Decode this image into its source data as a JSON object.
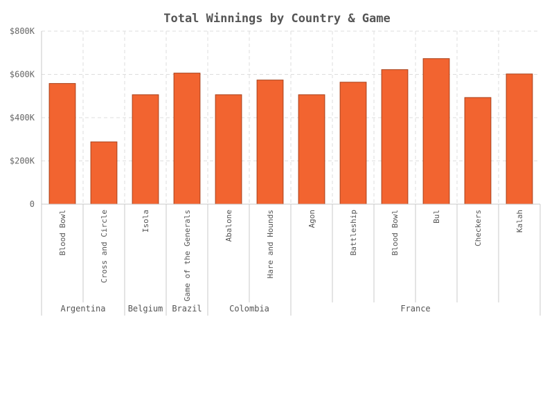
{
  "chart_data": {
    "type": "bar",
    "title": "Total Winnings by Country & Game",
    "xlabel": "",
    "ylabel": "",
    "ylim": [
      0,
      800000
    ],
    "yticks": [
      {
        "value": 0,
        "label": "0"
      },
      {
        "value": 200000,
        "label": "$200K"
      },
      {
        "value": 400000,
        "label": "$400K"
      },
      {
        "value": 600000,
        "label": "$600K"
      },
      {
        "value": 800000,
        "label": "$800K"
      }
    ],
    "grid": true,
    "legend": "none",
    "bar_color": "#f26430",
    "groups": [
      {
        "name": "Argentina",
        "categories": [
          "Blood Bowl",
          "Cross and Circle"
        ],
        "values": [
          558000,
          288000
        ]
      },
      {
        "name": "Belgium",
        "categories": [
          "Isola"
        ],
        "values": [
          506000
        ]
      },
      {
        "name": "Brazil",
        "categories": [
          "Game of the Generals"
        ],
        "values": [
          606000
        ]
      },
      {
        "name": "Colombia",
        "categories": [
          "Abalone",
          "Hare and Hounds"
        ],
        "values": [
          506000,
          574000
        ]
      },
      {
        "name": "France",
        "categories": [
          "Agon",
          "Battleship",
          "Blood Bowl",
          "Bul",
          "Checkers",
          "Kalah"
        ],
        "values": [
          506000,
          564000,
          622000,
          673000,
          493000,
          602000
        ]
      }
    ]
  }
}
